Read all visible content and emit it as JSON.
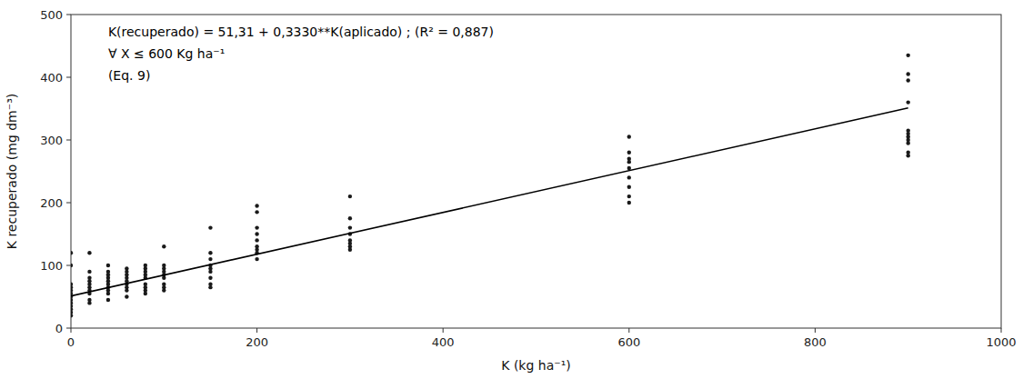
{
  "chart_data": {
    "type": "scatter",
    "xlabel": "K (kg ha⁻¹)",
    "ylabel": "K recuperado (mg dm⁻³)",
    "xlim": [
      0,
      1000
    ],
    "ylim": [
      0,
      500
    ],
    "xticks": [
      0,
      200,
      400,
      600,
      800,
      1000
    ],
    "yticks": [
      0,
      100,
      200,
      300,
      400,
      500
    ],
    "grid": false,
    "series": [
      {
        "type": "scatter",
        "color": "#1a1a1a",
        "x": [
          0,
          0,
          0,
          0,
          0,
          0,
          0,
          0,
          0,
          0,
          0,
          0,
          0,
          20,
          20,
          20,
          20,
          20,
          20,
          20,
          20,
          20,
          20,
          40,
          40,
          40,
          40,
          40,
          40,
          40,
          40,
          40,
          40,
          60,
          60,
          60,
          60,
          60,
          60,
          60,
          60,
          60,
          80,
          80,
          80,
          80,
          80,
          80,
          80,
          80,
          80,
          100,
          100,
          100,
          100,
          100,
          100,
          100,
          100,
          100,
          150,
          150,
          150,
          150,
          150,
          150,
          150,
          150,
          150,
          200,
          200,
          200,
          200,
          200,
          200,
          200,
          200,
          200,
          300,
          300,
          300,
          300,
          300,
          300,
          300,
          300,
          600,
          600,
          600,
          600,
          600,
          600,
          600,
          600,
          600,
          900,
          900,
          900,
          900,
          900,
          900,
          900,
          900,
          900,
          900,
          900
        ],
        "values": [
          20,
          25,
          30,
          35,
          40,
          45,
          50,
          55,
          60,
          65,
          70,
          100,
          120,
          40,
          45,
          55,
          60,
          65,
          70,
          75,
          80,
          90,
          120,
          45,
          55,
          60,
          65,
          70,
          75,
          80,
          85,
          90,
          100,
          50,
          60,
          65,
          70,
          75,
          80,
          85,
          90,
          95,
          55,
          60,
          65,
          70,
          80,
          85,
          90,
          95,
          100,
          60,
          65,
          70,
          80,
          85,
          90,
          95,
          100,
          130,
          65,
          70,
          80,
          90,
          95,
          100,
          110,
          120,
          160,
          110,
          120,
          125,
          130,
          140,
          150,
          160,
          185,
          195,
          125,
          130,
          135,
          140,
          150,
          160,
          175,
          210,
          200,
          210,
          225,
          240,
          255,
          265,
          270,
          280,
          305,
          275,
          280,
          295,
          300,
          305,
          310,
          315,
          360,
          395,
          405,
          435
        ]
      },
      {
        "type": "line",
        "color": "#000000",
        "x": [
          0,
          900
        ],
        "values": [
          51.31,
          351.01
        ]
      }
    ],
    "annotations": [
      "K(recuperado) = 51,31 + 0,3330**K(aplicado) ; (R² = 0,887)",
      "∀ X ≤ 600 Kg ha⁻¹",
      "(Eq. 9)"
    ]
  }
}
